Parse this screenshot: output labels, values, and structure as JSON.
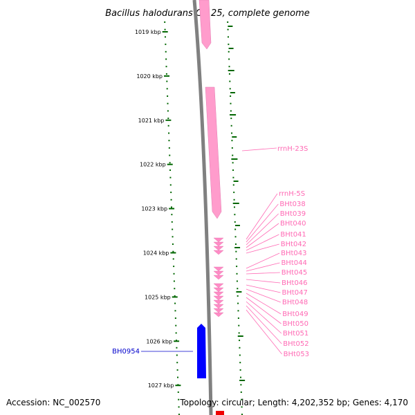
{
  "title": "Bacillus halodurans C-125, complete genome",
  "accession": "Accession: NC_002570",
  "topology": "Topology: circular; Length: 4,202,352 bp; Genes: 4,170",
  "ticks": [
    "1019 kbp",
    "1020 kbp",
    "1021 kbp",
    "1022 kbp",
    "1023 kbp",
    "1024 kbp",
    "1025 kbp",
    "1026 kbp",
    "1027 kbp"
  ],
  "rrna_labels": [
    "rrnH-23S",
    "rrnH-5S"
  ],
  "trna_labels": [
    "BHt038",
    "BHt039",
    "BHt040",
    "BHt041",
    "BHt042",
    "BHt043",
    "BHt044",
    "BHt045",
    "BHt046",
    "BHt047",
    "BHt048",
    "BHt049",
    "BHt050",
    "BHt051",
    "BHt052",
    "BHt053"
  ],
  "gene_labels": [
    "BH0954"
  ],
  "colors": {
    "rrna": "#ff9ccc",
    "trna": "#ff8cc6",
    "gene": "#0000ff",
    "backbone": "#808080",
    "tick": "#006600",
    "label_pink": "#ff69b4",
    "label_blue": "#0000cc"
  }
}
